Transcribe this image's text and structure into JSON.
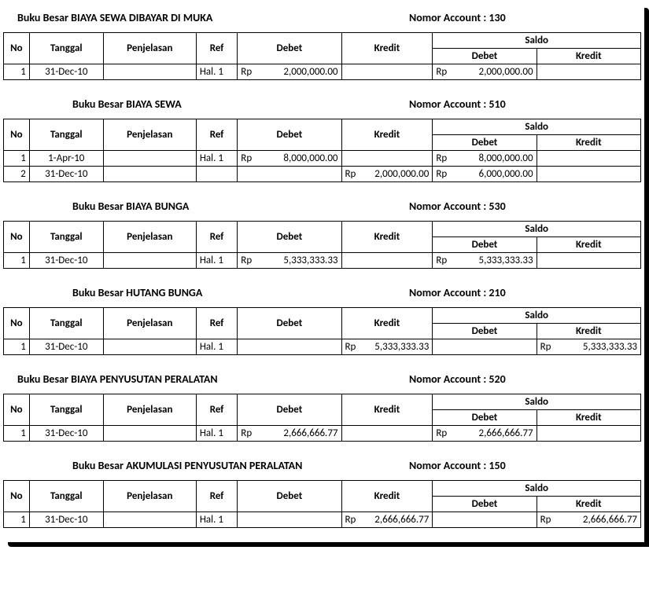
{
  "labels": {
    "no": "No",
    "tanggal": "Tanggal",
    "penjelasan": "Penjelasan",
    "ref": "Ref",
    "debet": "Debet",
    "kredit": "Kredit",
    "saldo": "Saldo",
    "account_prefix": "Nomor Account : "
  },
  "ledgers": [
    {
      "title": "Buku Besar BIAYA SEWA DIBAYAR DI MUKA",
      "account": "130",
      "title_indent": false,
      "rows": [
        {
          "no": "1",
          "tanggal": "31-Dec-10",
          "penjelasan": "",
          "ref": "Hal. 1",
          "debet_cur": "Rp",
          "debet": "2,000,000.00",
          "kredit_cur": "",
          "kredit": "",
          "saldo_debet_cur": "Rp",
          "saldo_debet": "2,000,000.00",
          "saldo_kredit_cur": "",
          "saldo_kredit": ""
        }
      ]
    },
    {
      "title": "Buku Besar BIAYA SEWA",
      "account": "510",
      "title_indent": true,
      "rows": [
        {
          "no": "1",
          "tanggal": "1-Apr-10",
          "penjelasan": "",
          "ref": "Hal. 1",
          "debet_cur": "Rp",
          "debet": "8,000,000.00",
          "kredit_cur": "",
          "kredit": "",
          "saldo_debet_cur": "Rp",
          "saldo_debet": "8,000,000.00",
          "saldo_kredit_cur": "",
          "saldo_kredit": ""
        },
        {
          "no": "2",
          "tanggal": "31-Dec-10",
          "penjelasan": "",
          "ref": "",
          "debet_cur": "",
          "debet": "",
          "kredit_cur": "Rp",
          "kredit": "2,000,000.00",
          "saldo_debet_cur": "Rp",
          "saldo_debet": "6,000,000.00",
          "saldo_kredit_cur": "",
          "saldo_kredit": ""
        }
      ]
    },
    {
      "title": "Buku Besar BIAYA BUNGA",
      "account": "530",
      "title_indent": true,
      "rows": [
        {
          "no": "1",
          "tanggal": "31-Dec-10",
          "penjelasan": "",
          "ref": "Hal. 1",
          "debet_cur": "Rp",
          "debet": "5,333,333.33",
          "kredit_cur": "",
          "kredit": "",
          "saldo_debet_cur": "Rp",
          "saldo_debet": "5,333,333.33",
          "saldo_kredit_cur": "",
          "saldo_kredit": ""
        }
      ]
    },
    {
      "title": "Buku Besar HUTANG BUNGA",
      "account": "210",
      "title_indent": true,
      "rows": [
        {
          "no": "1",
          "tanggal": "31-Dec-10",
          "penjelasan": "",
          "ref": "Hal. 1",
          "debet_cur": "",
          "debet": "",
          "kredit_cur": "Rp",
          "kredit": "5,333,333.33",
          "saldo_debet_cur": "",
          "saldo_debet": "",
          "saldo_kredit_cur": "Rp",
          "saldo_kredit": "5,333,333.33"
        }
      ]
    },
    {
      "title": "Buku Besar BIAYA PENYUSUTAN PERALATAN",
      "account": "520",
      "title_indent": false,
      "rows": [
        {
          "no": "1",
          "tanggal": "31-Dec-10",
          "penjelasan": "",
          "ref": "Hal. 1",
          "debet_cur": "Rp",
          "debet": "2,666,666.77",
          "kredit_cur": "",
          "kredit": "",
          "saldo_debet_cur": "Rp",
          "saldo_debet": "2,666,666.77",
          "saldo_kredit_cur": "",
          "saldo_kredit": ""
        }
      ]
    },
    {
      "title": "Buku Besar AKUMULASI PENYUSUTAN PERALATAN",
      "account": "150",
      "title_indent": true,
      "rows": [
        {
          "no": "1",
          "tanggal": "31-Dec-10",
          "penjelasan": "",
          "ref": "Hal. 1",
          "debet_cur": "",
          "debet": "",
          "kredit_cur": "Rp",
          "kredit": "2,666,666.77",
          "saldo_debet_cur": "",
          "saldo_debet": "",
          "saldo_kredit_cur": "Rp",
          "saldo_kredit": "2,666,666.77"
        }
      ]
    }
  ]
}
